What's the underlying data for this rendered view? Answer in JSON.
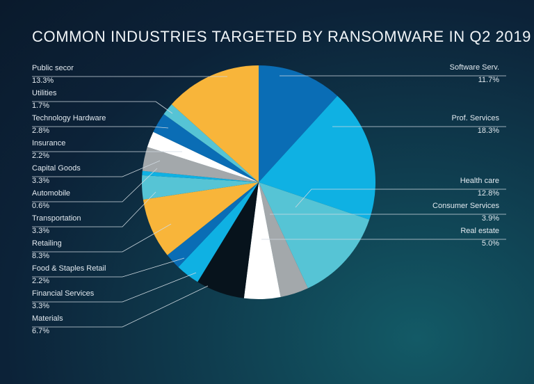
{
  "chart_data": {
    "type": "pie",
    "title": "COMMON INDUSTRIES TARGETED BY RANSOMWARE IN Q2 2019",
    "slices": [
      {
        "label": "Software Serv.",
        "value_text": "11.7%",
        "value": 11.7,
        "color": "#0a6db5"
      },
      {
        "label": "Prof. Services",
        "value_text": "18.3%",
        "value": 18.3,
        "color": "#0fb1e3"
      },
      {
        "label": "Health care",
        "value_text": "12.8%",
        "value": 12.8,
        "color": "#56c4d5"
      },
      {
        "label": "Consumer Services",
        "value_text": "3.9%",
        "value": 3.9,
        "color": "#a3a8ab"
      },
      {
        "label": "Real estate",
        "value_text": "5.0%",
        "value": 5.0,
        "color": "#ffffff"
      },
      {
        "label": "Materials",
        "value_text": "6.7%",
        "value": 6.7,
        "color": "#07131c"
      },
      {
        "label": "Financial Services",
        "value_text": "3.3%",
        "value": 3.3,
        "color": "#0fb1e3"
      },
      {
        "label": "Food & Staples Retail",
        "value_text": "2.2%",
        "value": 2.2,
        "color": "#0a6db5"
      },
      {
        "label": "Retailing",
        "value_text": "8.3%",
        "value": 8.3,
        "color": "#f8b53a"
      },
      {
        "label": "Transportation",
        "value_text": "3.3%",
        "value": 3.3,
        "color": "#56c4d5"
      },
      {
        "label": "Automobile",
        "value_text": "0.6%",
        "value": 0.6,
        "color": "#0fb1e3"
      },
      {
        "label": "Capital Goods",
        "value_text": "3.3%",
        "value": 3.3,
        "color": "#a3a8ab"
      },
      {
        "label": "Insurance",
        "value_text": "2.2%",
        "value": 2.2,
        "color": "#ffffff"
      },
      {
        "label": "Technology Hardware",
        "value_text": "2.8%",
        "value": 2.8,
        "color": "#0a6db5"
      },
      {
        "label": "Utilities",
        "value_text": "1.7%",
        "value": 1.7,
        "color": "#56c4d5"
      },
      {
        "label": "Public secor",
        "value_text": "13.3%",
        "value": 13.3,
        "color": "#f8b53a"
      }
    ]
  }
}
